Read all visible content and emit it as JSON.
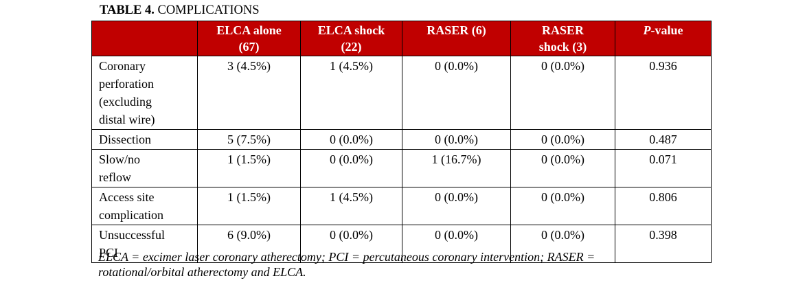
{
  "title": {
    "prefix": "TABLE 4.",
    "text": " COMPLICATIONS"
  },
  "table": {
    "columns": {
      "row_label": "",
      "elca_alone": "ELCA alone\n(67)",
      "elca_shock": "ELCA shock\n(22)",
      "raser": "RASER (6)",
      "raser_shock": "RASER\nshock (3)",
      "p_value": {
        "italic_part": "P",
        "rest": "-value"
      }
    },
    "rows": [
      {
        "label": "Coronary\nperforation\n(excluding\ndistal wire)",
        "values": [
          "3 (4.5%)",
          "1 (4.5%)",
          "0 (0.0%)",
          "0 (0.0%)",
          "0.936"
        ]
      },
      {
        "label": "Dissection",
        "values": [
          "5 (7.5%)",
          "0 (0.0%)",
          "0 (0.0%)",
          "0 (0.0%)",
          "0.487"
        ]
      },
      {
        "label": "Slow/no\nreflow",
        "values": [
          "1 (1.5%)",
          "0 (0.0%)",
          "1 (16.7%)",
          "0 (0.0%)",
          "0.071"
        ]
      },
      {
        "label": "Access site\ncomplication",
        "values": [
          "1 (1.5%)",
          "1 (4.5%)",
          "0 (0.0%)",
          "0 (0.0%)",
          "0.806"
        ]
      },
      {
        "label": "Unsuccessful\nPCI",
        "values": [
          "6 (9.0%)",
          "0 (0.0%)",
          "0 (0.0%)",
          "0 (0.0%)",
          "0.398"
        ]
      }
    ]
  },
  "footnote": {
    "lines": [
      "ELCA = excimer laser coronary atherectomy; PCI = percutaneous coronary intervention; RASER =",
      "rotational/orbital atherectomy and ELCA."
    ]
  },
  "colors": {
    "header_bg": "#C00000",
    "header_text": "#FFFFFF",
    "border": "#000000",
    "body_text": "#000000"
  }
}
